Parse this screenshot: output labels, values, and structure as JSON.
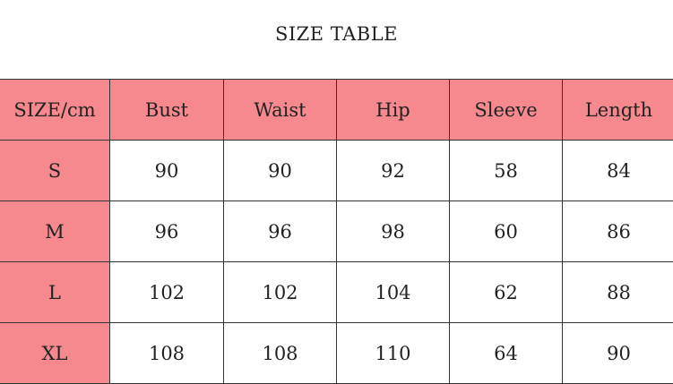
{
  "title": "SIZE TABLE",
  "colors": {
    "header_bg": "#f5898d",
    "cell_bg": "#ffffff"
  },
  "headers": [
    "SIZE/cm",
    "Bust",
    "Waist",
    "Hip",
    "Sleeve",
    "Length"
  ],
  "rows": [
    [
      "S",
      "90",
      "90",
      "92",
      "58",
      "84"
    ],
    [
      "M",
      "96",
      "96",
      "98",
      "60",
      "86"
    ],
    [
      "L",
      "102",
      "102",
      "104",
      "62",
      "88"
    ],
    [
      "XL",
      "108",
      "108",
      "110",
      "64",
      "90"
    ]
  ]
}
